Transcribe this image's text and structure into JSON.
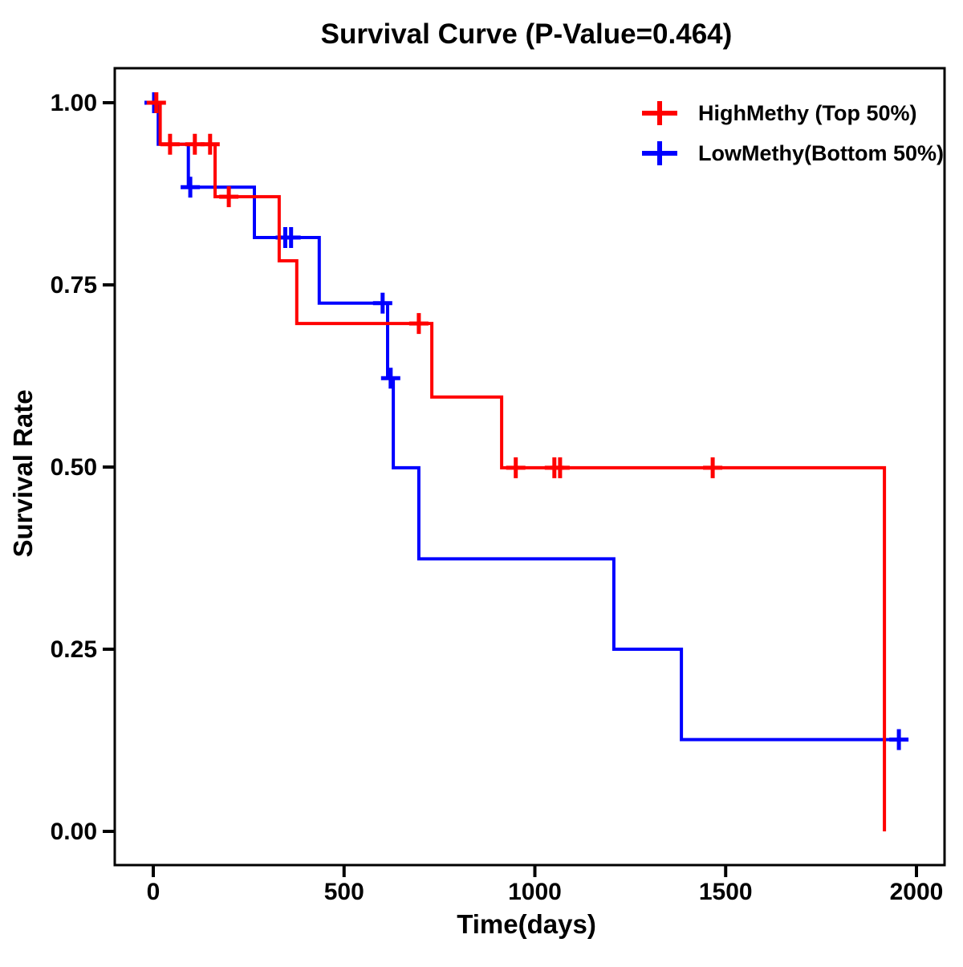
{
  "chart_data": {
    "type": "line",
    "subtype": "kaplan-meier-step",
    "title": "Survival Curve (P-Value=0.464)",
    "p_value": 0.464,
    "xlabel": "Time(days)",
    "ylabel": "Survival Rate",
    "xlim": [
      0,
      2074
    ],
    "ylim": [
      -0.046,
      1.047
    ],
    "grid": false,
    "legend_position": "top-right",
    "xticks": [
      {
        "label": "0",
        "value": 0
      },
      {
        "label": "500",
        "value": 500
      },
      {
        "label": "1000",
        "value": 1000
      },
      {
        "label": "1500",
        "value": 1500
      },
      {
        "label": "2000",
        "value": 2000
      }
    ],
    "yticks": [
      {
        "label": "1.00",
        "value": 1.0
      },
      {
        "label": "0.75",
        "value": 0.75
      },
      {
        "label": "0.50",
        "value": 0.5
      },
      {
        "label": "0.25",
        "value": 0.25
      },
      {
        "label": "0.00",
        "value": 0.0
      }
    ],
    "series": [
      {
        "name": "LowMethy(Bottom 50%)",
        "color": "#0000ff",
        "steps": [
          {
            "t": 0,
            "s": 1.0
          },
          {
            "t": 13,
            "s": 0.943
          },
          {
            "t": 92,
            "s": 0.884
          },
          {
            "t": 265,
            "s": 0.815
          },
          {
            "t": 435,
            "s": 0.725
          },
          {
            "t": 614,
            "s": 0.622
          },
          {
            "t": 629,
            "s": 0.499
          },
          {
            "t": 696,
            "s": 0.374
          },
          {
            "t": 1207,
            "s": 0.25
          },
          {
            "t": 1384,
            "s": 0.126
          }
        ],
        "end_time": 1979,
        "censors": [
          {
            "t": 2,
            "s": 1.0
          },
          {
            "t": 97,
            "s": 0.884
          },
          {
            "t": 346,
            "s": 0.815
          },
          {
            "t": 361,
            "s": 0.815
          },
          {
            "t": 601,
            "s": 0.725
          },
          {
            "t": 622,
            "s": 0.622
          },
          {
            "t": 1954,
            "s": 0.126
          }
        ]
      },
      {
        "name": "HighMethy (Top 50%)",
        "color": "#ff0000",
        "steps": [
          {
            "t": 0,
            "s": 1.0
          },
          {
            "t": 18,
            "s": 0.943
          },
          {
            "t": 162,
            "s": 0.871
          },
          {
            "t": 330,
            "s": 0.783
          },
          {
            "t": 376,
            "s": 0.697
          },
          {
            "t": 730,
            "s": 0.596
          },
          {
            "t": 913,
            "s": 0.499
          },
          {
            "t": 1916,
            "s": 0.0
          }
        ],
        "end_time": 1916,
        "censors": [
          {
            "t": 8,
            "s": 1.0
          },
          {
            "t": 44,
            "s": 0.943
          },
          {
            "t": 109,
            "s": 0.943
          },
          {
            "t": 149,
            "s": 0.943
          },
          {
            "t": 198,
            "s": 0.871
          },
          {
            "t": 696,
            "s": 0.697
          },
          {
            "t": 950,
            "s": 0.499
          },
          {
            "t": 1051,
            "s": 0.499
          },
          {
            "t": 1066,
            "s": 0.499
          },
          {
            "t": 1466,
            "s": 0.499
          }
        ]
      }
    ],
    "legend": [
      {
        "label": "HighMethy (Top 50%)",
        "color": "#ff0000"
      },
      {
        "label": "LowMethy(Bottom 50%)",
        "color": "#0000ff"
      }
    ]
  }
}
